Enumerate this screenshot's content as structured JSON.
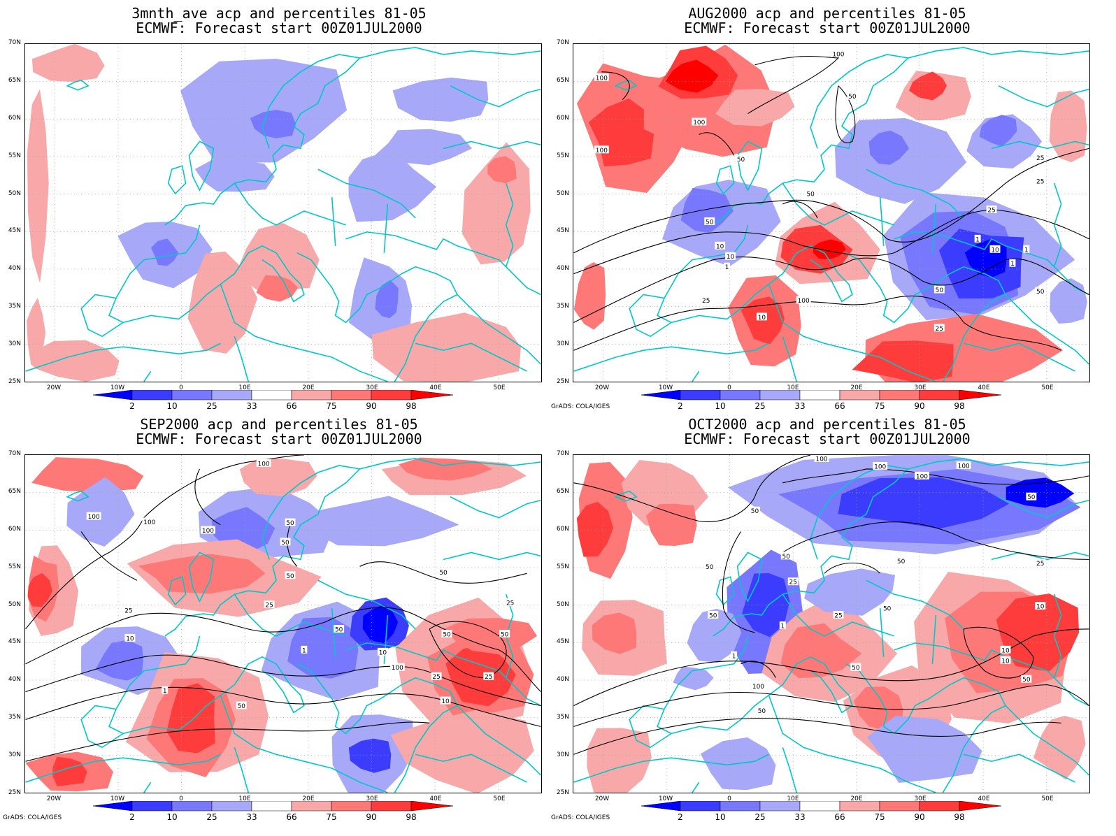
{
  "colors": {
    "p2": "#0000ff",
    "p10": "#3c3cff",
    "p25": "#7878ff",
    "p33": "#a8a8f8",
    "p66": "#f8a8a8",
    "p75": "#ff7878",
    "p90": "#ff3c3c",
    "p98": "#ff0000",
    "coast": "#00c8c8",
    "contour": "#000000",
    "grid": "#a0a0a0"
  },
  "panels": [
    {
      "title_line1": "3mnth_ave acp and percentiles 81-05",
      "title_line2": "ECMWF: Forecast start 00Z01JUL2000",
      "contours": false,
      "credit": ""
    },
    {
      "title_line1": "AUG2000 acp and percentiles 81-05",
      "title_line2": "ECMWF: Forecast start 00Z01JUL2000",
      "contours": true,
      "contour_labels": [
        "100",
        "100",
        "100",
        "100",
        "50",
        "50",
        "50",
        "50",
        "25",
        "25",
        "25",
        "10",
        "10",
        "10",
        "1",
        "1",
        "1",
        "1",
        "50",
        "100",
        "25",
        "50",
        "25",
        "10"
      ],
      "credit": "GrADS: COLA/IGES"
    },
    {
      "title_line1": "SEP2000 acp and percentiles 81-05",
      "title_line2": "ECMWF: Forecast start 00Z01JUL2000",
      "contours": true,
      "contour_labels": [
        "100",
        "100",
        "100",
        "100",
        "50",
        "50",
        "50",
        "50",
        "50",
        "25",
        "25",
        "10",
        "10",
        "1",
        "1",
        "50",
        "25",
        "25",
        "50",
        "10",
        "100",
        "25",
        "50"
      ],
      "credit": "GrADS: COLA/IGES"
    },
    {
      "title_line1": "OCT2000 acp and percentiles 81-05",
      "title_line2": "ECMWF: Forecast start 00Z01JUL2000",
      "contours": true,
      "contour_labels": [
        "100",
        "100",
        "100",
        "100",
        "50",
        "50",
        "50",
        "50",
        "50",
        "50",
        "50",
        "25",
        "25",
        "25",
        "10",
        "10",
        "10",
        "1",
        "1",
        "50",
        "50",
        "50",
        "100"
      ],
      "credit": "GrADS: COLA/IGES"
    }
  ],
  "lat_labels": [
    "70N",
    "65N",
    "60N",
    "55N",
    "50N",
    "45N",
    "40N",
    "35N",
    "30N",
    "25N"
  ],
  "lon_labels": [
    "20W",
    "10W",
    "0",
    "10E",
    "20E",
    "30E",
    "40E",
    "50E"
  ],
  "colorbar_labels": [
    "2",
    "10",
    "25",
    "33",
    "66",
    "75",
    "90",
    "98"
  ]
}
